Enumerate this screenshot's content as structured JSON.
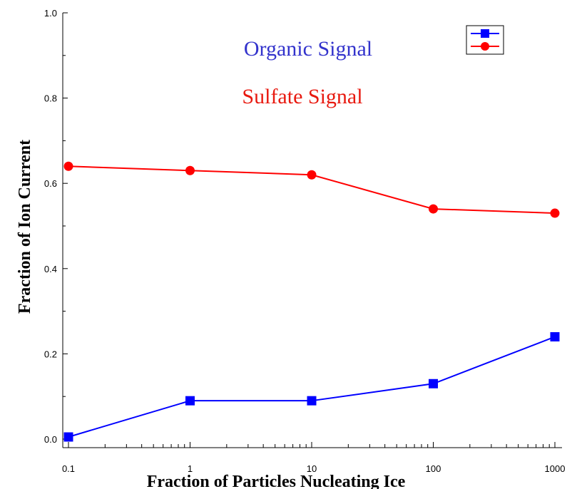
{
  "chart_data": {
    "type": "line",
    "xscale": "log",
    "xlim": [
      0.1,
      1000
    ],
    "ylim": [
      0.0,
      1.0
    ],
    "xlabel": "Fraction of Particles Nucleating Ice",
    "ylabel": "Fraction of Ion Current",
    "xticks": [
      "0.1",
      "1",
      "10",
      "100",
      "1000"
    ],
    "yticks": [
      "0.0",
      "0.2",
      "0.4",
      "0.6",
      "0.8",
      "1.0"
    ],
    "grid": false,
    "legend": "top-right",
    "annotations": [
      {
        "text": "Organic Signal",
        "color": "#3333cc"
      },
      {
        "text": "Sulfate Signal",
        "color": "#e8190f"
      }
    ],
    "x": [
      0.1,
      1,
      10,
      100,
      1000
    ],
    "series": [
      {
        "color": "#0000ff",
        "marker": "square",
        "values": [
          0.005,
          0.09,
          0.09,
          0.13,
          0.24
        ]
      },
      {
        "color": "#ff0000",
        "marker": "circle",
        "values": [
          0.64,
          0.63,
          0.62,
          0.54,
          0.53
        ]
      }
    ]
  }
}
